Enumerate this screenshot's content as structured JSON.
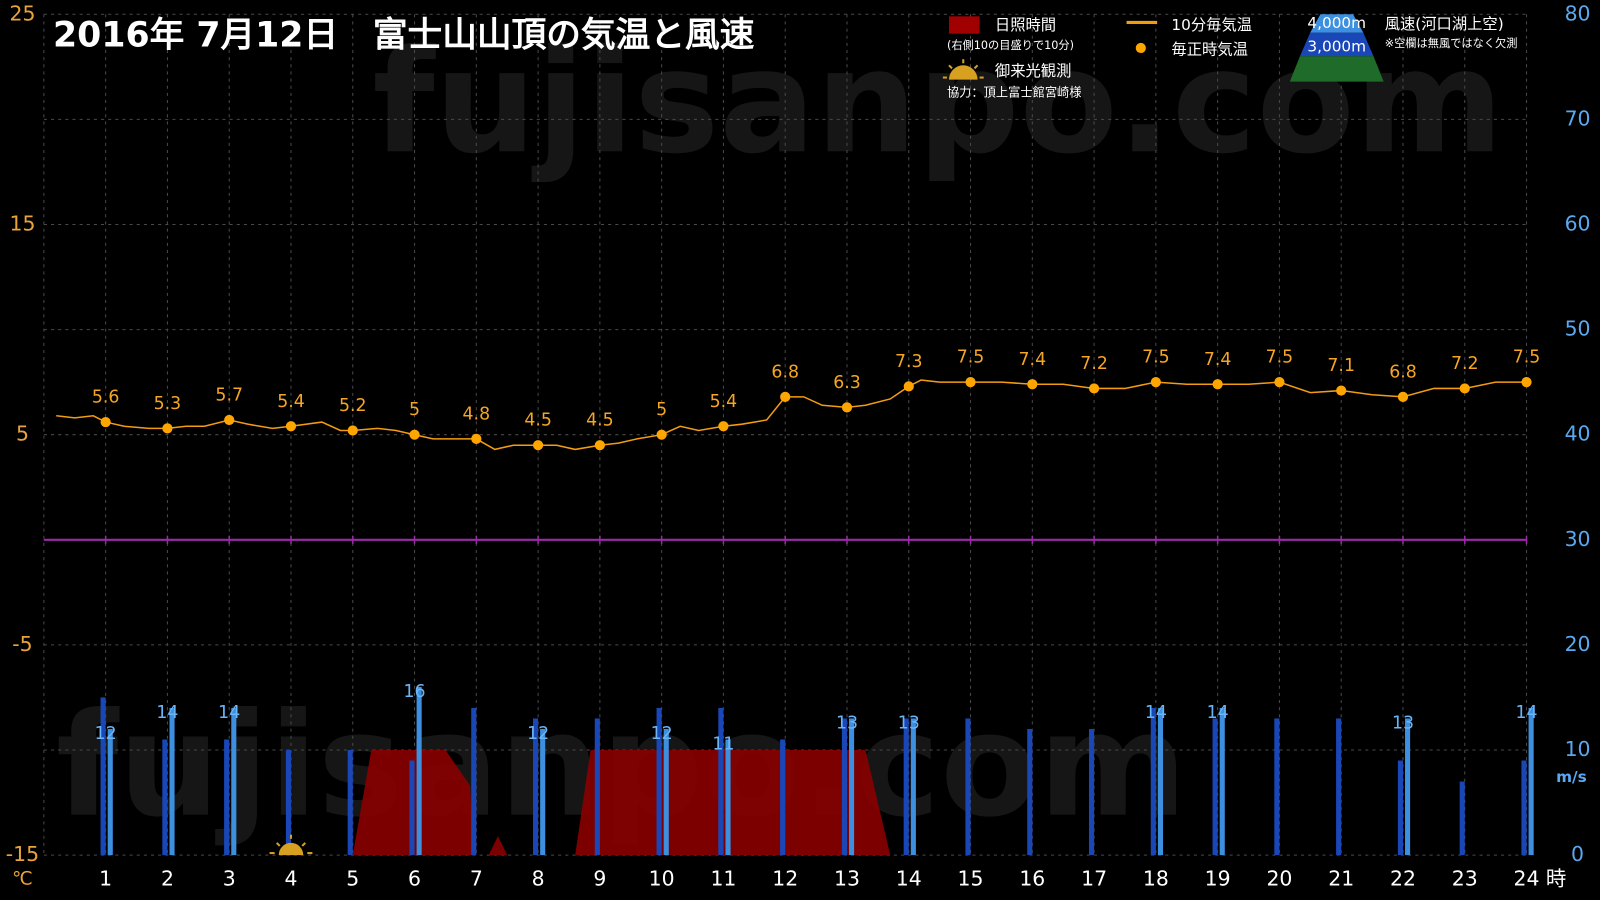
{
  "chart_data": {
    "type": "combo",
    "title": "2016年  7月12日　富士山山頂の気温と風速",
    "watermark": "fujisanpo.com",
    "x_unit": "時",
    "xlim": [
      0,
      24
    ],
    "xticks": [
      1,
      2,
      3,
      4,
      5,
      6,
      7,
      8,
      9,
      10,
      11,
      12,
      13,
      14,
      15,
      16,
      17,
      18,
      19,
      20,
      21,
      22,
      23,
      24
    ],
    "y_unit": "℃",
    "ylim": [
      -15,
      25
    ],
    "yticks": [
      -15,
      -5,
      5,
      15,
      25
    ],
    "y2_unit": "m/s",
    "y2lim": [
      0,
      80
    ],
    "y2ticks": [
      0,
      10,
      20,
      30,
      40,
      50,
      60,
      70,
      80
    ],
    "grid": true,
    "series": [
      {
        "name": "日照時間",
        "kind": "area",
        "axis": "y2",
        "color": "#8b0000",
        "x": [
          5,
          5.3,
          6.5,
          6.9,
          6.95,
          7.2,
          7.35,
          7.5,
          8.6,
          8.85,
          13.3,
          13.7
        ],
        "values": [
          0,
          10,
          10,
          6.6,
          0,
          0,
          1.8,
          0,
          0,
          10,
          10,
          0
        ]
      },
      {
        "name": "3,000m",
        "kind": "bar",
        "axis": "y2",
        "color": "#1a47b8",
        "x": [
          1,
          2,
          3,
          4,
          5,
          6,
          7,
          8,
          9,
          10,
          11,
          12,
          13,
          14,
          15,
          16,
          17,
          18,
          19,
          20,
          21,
          22,
          23,
          24
        ],
        "values": [
          15,
          11,
          11,
          10,
          10,
          9,
          14,
          13,
          13,
          14,
          14,
          11,
          13,
          13,
          13,
          12,
          12,
          14,
          13,
          13,
          13,
          9,
          7,
          9
        ]
      },
      {
        "name": "4,000m",
        "kind": "bar",
        "axis": "y2",
        "color": "#3d8fe0",
        "x": [
          1,
          2,
          3,
          4,
          5,
          6,
          7,
          8,
          9,
          10,
          11,
          12,
          13,
          14,
          15,
          16,
          17,
          18,
          19,
          20,
          21,
          22,
          23,
          24
        ],
        "values": [
          12,
          14,
          14,
          null,
          null,
          16,
          null,
          12,
          null,
          12,
          11,
          null,
          13,
          13,
          null,
          null,
          null,
          14,
          14,
          null,
          null,
          13,
          null,
          14
        ]
      },
      {
        "name": "10分毎気温",
        "kind": "line",
        "color": "#f39c12",
        "x": [
          0.2,
          0.5,
          0.8,
          1,
          1.3,
          1.7,
          2,
          2.3,
          2.6,
          3,
          3.3,
          3.7,
          4,
          4.5,
          4.8,
          5,
          5.4,
          5.7,
          6,
          6.3,
          6.7,
          7,
          7.3,
          7.6,
          8,
          8.3,
          8.6,
          9,
          9.3,
          9.6,
          10,
          10.3,
          10.6,
          11,
          11.3,
          11.7,
          12,
          12.3,
          12.6,
          13,
          13.3,
          13.7,
          14,
          14.2,
          14.5,
          15,
          15.5,
          16,
          16.5,
          17,
          17.5,
          18,
          18.5,
          19,
          19.5,
          20,
          20.5,
          21,
          21.5,
          22,
          22.5,
          23,
          23.5,
          24
        ],
        "values": [
          5.9,
          5.8,
          5.9,
          5.6,
          5.4,
          5.3,
          5.3,
          5.4,
          5.4,
          5.7,
          5.5,
          5.3,
          5.4,
          5.6,
          5.2,
          5.2,
          5.3,
          5.2,
          5.0,
          4.8,
          4.8,
          4.8,
          4.3,
          4.5,
          4.5,
          4.5,
          4.3,
          4.5,
          4.6,
          4.8,
          5.0,
          5.4,
          5.2,
          5.4,
          5.5,
          5.7,
          6.8,
          6.8,
          6.4,
          6.3,
          6.4,
          6.7,
          7.3,
          7.6,
          7.5,
          7.5,
          7.5,
          7.4,
          7.4,
          7.2,
          7.2,
          7.5,
          7.4,
          7.4,
          7.4,
          7.5,
          7.0,
          7.1,
          6.9,
          6.8,
          7.2,
          7.2,
          7.5,
          7.5
        ]
      },
      {
        "name": "毎正時気温",
        "kind": "points",
        "color": "#ffa500",
        "x": [
          1,
          2,
          3,
          4,
          5,
          6,
          7,
          8,
          9,
          10,
          11,
          12,
          13,
          14,
          15,
          16,
          17,
          18,
          19,
          20,
          21,
          22,
          23,
          24
        ],
        "values": [
          5.6,
          5.3,
          5.7,
          5.4,
          5.2,
          5,
          4.8,
          4.5,
          4.5,
          5,
          5.4,
          6.8,
          6.3,
          7.3,
          7.5,
          7.4,
          7.2,
          7.5,
          7.4,
          7.5,
          7.1,
          6.8,
          7.2,
          7.5
        ]
      }
    ],
    "sunshine_note": "(右側10の目盛りで10分)",
    "sunrise": {
      "label": "御来光観測",
      "x": 4
    },
    "credit": "協力：頂上富士館宮崎様",
    "wind_title": "風速(河口湖上空)",
    "wind_note": "※空欄は無風ではなく欠測"
  }
}
